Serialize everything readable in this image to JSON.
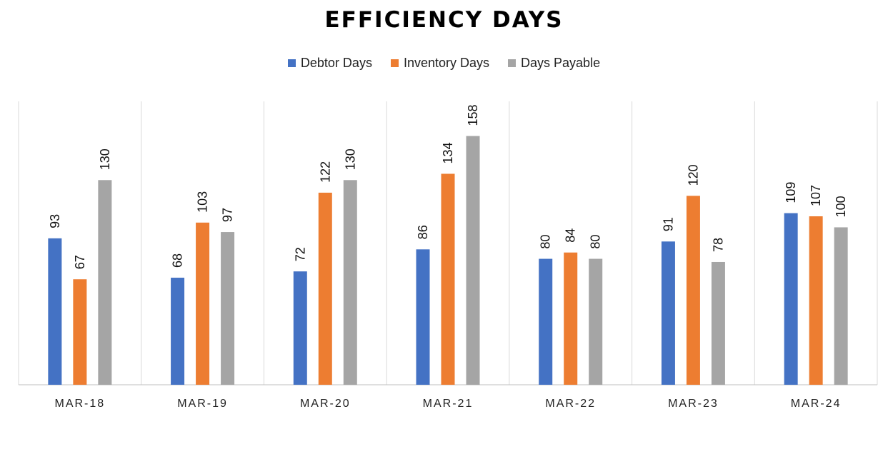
{
  "chart_data": {
    "type": "bar",
    "title": "EFFICIENCY DAYS",
    "xlabel": "",
    "ylabel": "",
    "categories": [
      "MAR-18",
      "MAR-19",
      "MAR-20",
      "MAR-21",
      "MAR-22",
      "MAR-23",
      "MAR-24"
    ],
    "series": [
      {
        "name": "Debtor Days",
        "color": "#4472C4",
        "values": [
          93,
          68,
          72,
          86,
          80,
          91,
          109
        ]
      },
      {
        "name": "Inventory Days",
        "color": "#ED7D31",
        "values": [
          67,
          103,
          122,
          134,
          84,
          120,
          107
        ]
      },
      {
        "name": "Days Payable",
        "color": "#A5A5A5",
        "values": [
          130,
          97,
          130,
          158,
          80,
          78,
          100
        ]
      }
    ],
    "ylim": [
      0,
      180
    ],
    "grid": false,
    "legend_position": "top-center",
    "data_labels": true
  }
}
